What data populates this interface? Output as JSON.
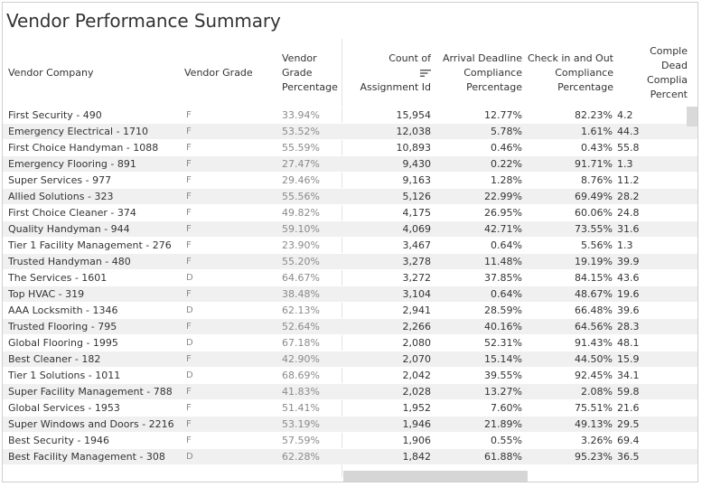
{
  "title": "Vendor Performance Summary",
  "headers": {
    "vendor": "Vendor Company",
    "grade": "Vendor Grade",
    "grade_pct": [
      "Vendor",
      "Grade",
      "Percentage"
    ],
    "count": [
      "Count of",
      "Assignment Id"
    ],
    "arrival": [
      "Arrival Deadline",
      "Compliance",
      "Percentage"
    ],
    "checkin": [
      "Check in and Out",
      "Compliance",
      "Percentage"
    ],
    "complete": [
      "Comple",
      "Dead",
      "Complia",
      "Percent"
    ]
  },
  "icons": {
    "sort": "sort-descending-icon"
  },
  "rows": [
    {
      "vendor": "First Security - 490",
      "grade": "F",
      "grade_pct": "33.94%",
      "count": "15,954",
      "arrival": "12.77%",
      "checkin": "82.23%",
      "complete": "4.2"
    },
    {
      "vendor": "Emergency Electrical - 1710",
      "grade": "F",
      "grade_pct": "53.52%",
      "count": "12,038",
      "arrival": "5.78%",
      "checkin": "1.61%",
      "complete": "44.3"
    },
    {
      "vendor": "First Choice Handyman - 1088",
      "grade": "F",
      "grade_pct": "55.59%",
      "count": "10,893",
      "arrival": "0.46%",
      "checkin": "0.43%",
      "complete": "55.8"
    },
    {
      "vendor": "Emergency Flooring - 891",
      "grade": "F",
      "grade_pct": "27.47%",
      "count": "9,430",
      "arrival": "0.22%",
      "checkin": "91.71%",
      "complete": "1.3"
    },
    {
      "vendor": "Super Services - 977",
      "grade": "F",
      "grade_pct": "29.46%",
      "count": "9,163",
      "arrival": "1.28%",
      "checkin": "8.76%",
      "complete": "11.2"
    },
    {
      "vendor": "Allied Solutions - 323",
      "grade": "F",
      "grade_pct": "55.56%",
      "count": "5,126",
      "arrival": "22.99%",
      "checkin": "69.49%",
      "complete": "28.2"
    },
    {
      "vendor": "First Choice Cleaner - 374",
      "grade": "F",
      "grade_pct": "49.82%",
      "count": "4,175",
      "arrival": "26.95%",
      "checkin": "60.06%",
      "complete": "24.8"
    },
    {
      "vendor": "Quality Handyman - 944",
      "grade": "F",
      "grade_pct": "59.10%",
      "count": "4,069",
      "arrival": "42.71%",
      "checkin": "73.55%",
      "complete": "31.6"
    },
    {
      "vendor": "Tier 1 Facility Management - 276",
      "grade": "F",
      "grade_pct": "23.90%",
      "count": "3,467",
      "arrival": "0.64%",
      "checkin": "5.56%",
      "complete": "1.3"
    },
    {
      "vendor": "Trusted Handyman - 480",
      "grade": "F",
      "grade_pct": "55.20%",
      "count": "3,278",
      "arrival": "11.48%",
      "checkin": "19.19%",
      "complete": "39.9"
    },
    {
      "vendor": "The Services - 1601",
      "grade": "D",
      "grade_pct": "64.67%",
      "count": "3,272",
      "arrival": "37.85%",
      "checkin": "84.15%",
      "complete": "43.6"
    },
    {
      "vendor": "Top HVAC - 319",
      "grade": "F",
      "grade_pct": "38.48%",
      "count": "3,104",
      "arrival": "0.64%",
      "checkin": "48.67%",
      "complete": "19.6"
    },
    {
      "vendor": "AAA Locksmith - 1346",
      "grade": "D",
      "grade_pct": "62.13%",
      "count": "2,941",
      "arrival": "28.59%",
      "checkin": "66.48%",
      "complete": "39.6"
    },
    {
      "vendor": "Trusted Flooring - 795",
      "grade": "F",
      "grade_pct": "52.64%",
      "count": "2,266",
      "arrival": "40.16%",
      "checkin": "64.56%",
      "complete": "28.3"
    },
    {
      "vendor": "Global Flooring - 1995",
      "grade": "D",
      "grade_pct": "67.18%",
      "count": "2,080",
      "arrival": "52.31%",
      "checkin": "91.43%",
      "complete": "48.1"
    },
    {
      "vendor": "Best Cleaner - 182",
      "grade": "F",
      "grade_pct": "42.90%",
      "count": "2,070",
      "arrival": "15.14%",
      "checkin": "44.50%",
      "complete": "15.9"
    },
    {
      "vendor": "Tier 1 Solutions - 1011",
      "grade": "D",
      "grade_pct": "68.69%",
      "count": "2,042",
      "arrival": "39.55%",
      "checkin": "92.45%",
      "complete": "34.1"
    },
    {
      "vendor": "Super Facility Management - 788",
      "grade": "F",
      "grade_pct": "41.83%",
      "count": "2,028",
      "arrival": "13.27%",
      "checkin": "2.08%",
      "complete": "59.8"
    },
    {
      "vendor": "Global Services - 1953",
      "grade": "F",
      "grade_pct": "51.41%",
      "count": "1,952",
      "arrival": "7.60%",
      "checkin": "75.51%",
      "complete": "21.6"
    },
    {
      "vendor": "Super Windows and Doors - 2216",
      "grade": "F",
      "grade_pct": "53.19%",
      "count": "1,946",
      "arrival": "21.89%",
      "checkin": "49.13%",
      "complete": "29.5"
    },
    {
      "vendor": "Best Security - 1946",
      "grade": "F",
      "grade_pct": "57.59%",
      "count": "1,906",
      "arrival": "0.55%",
      "checkin": "3.26%",
      "complete": "69.4"
    },
    {
      "vendor": "Best Facility Management - 308",
      "grade": "D",
      "grade_pct": "62.28%",
      "count": "1,842",
      "arrival": "61.88%",
      "checkin": "95.23%",
      "complete": "36.5"
    }
  ],
  "colors": {
    "row_alt": "#f0f0f0",
    "grade_text": "#8a8a8a",
    "text": "#333333",
    "scrollbar": "#d6d6d6"
  }
}
